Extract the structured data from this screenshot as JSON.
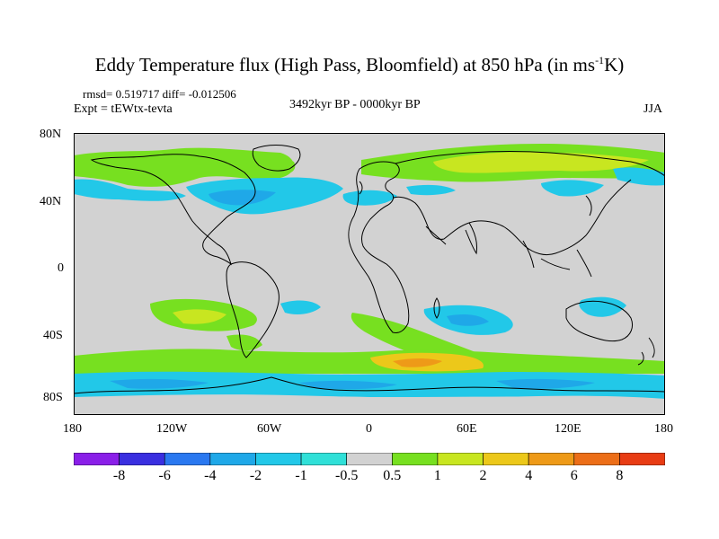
{
  "title_main": "Eddy Temperature flux (High Pass, Bloomfield) at 850 hPa (in ms",
  "title_sup": "-1",
  "title_end": "K)",
  "stats": "rmsd= 0.519717 diff= -0.012506",
  "expt": "Expt = tEWtx-tevta",
  "period": "3492kyr BP - 0000kyr BP",
  "season": "JJA",
  "lat_ticks": [
    "80N",
    "40N",
    "0",
    "40S",
    "80S"
  ],
  "lon_ticks": [
    "180",
    "120W",
    "60W",
    "0",
    "60E",
    "120E",
    "180"
  ],
  "colorbar": {
    "labels": [
      "-8",
      "-6",
      "-4",
      "-2",
      "-1",
      "-0.5",
      "0.5",
      "1",
      "2",
      "4",
      "6",
      "8"
    ],
    "colors": [
      "#8a1fe8",
      "#3a2fe0",
      "#2a78f0",
      "#1fa8e8",
      "#22c8e8",
      "#30e0d8",
      "#d2d2d2",
      "#77e020",
      "#c8e620",
      "#ecc81a",
      "#ee9a18",
      "#ec6e18",
      "#e83c14"
    ]
  },
  "map_data": {
    "background_value_color": "#d2d2d2",
    "regions": [
      {
        "name": "north-pacific-boreal",
        "level": "1",
        "color": "#77e020"
      },
      {
        "name": "north-atlantic-storm-track",
        "level": "-1",
        "color": "#22c8e8"
      },
      {
        "name": "eurasia-boreal",
        "level": "1",
        "color": "#77e020"
      },
      {
        "name": "siberia-core",
        "level": "2",
        "color": "#c8e620"
      },
      {
        "name": "south-pacific-band",
        "level": "1",
        "color": "#77e020"
      },
      {
        "name": "south-atlantic-band",
        "level": "1",
        "color": "#77e020"
      },
      {
        "name": "southern-ocean-core",
        "level": "4",
        "color": "#ecc81a"
      },
      {
        "name": "indian-ocean-south",
        "level": "-1",
        "color": "#22c8e8"
      },
      {
        "name": "antarctic-coast",
        "level": "-2",
        "color": "#1fa8e8"
      }
    ]
  }
}
